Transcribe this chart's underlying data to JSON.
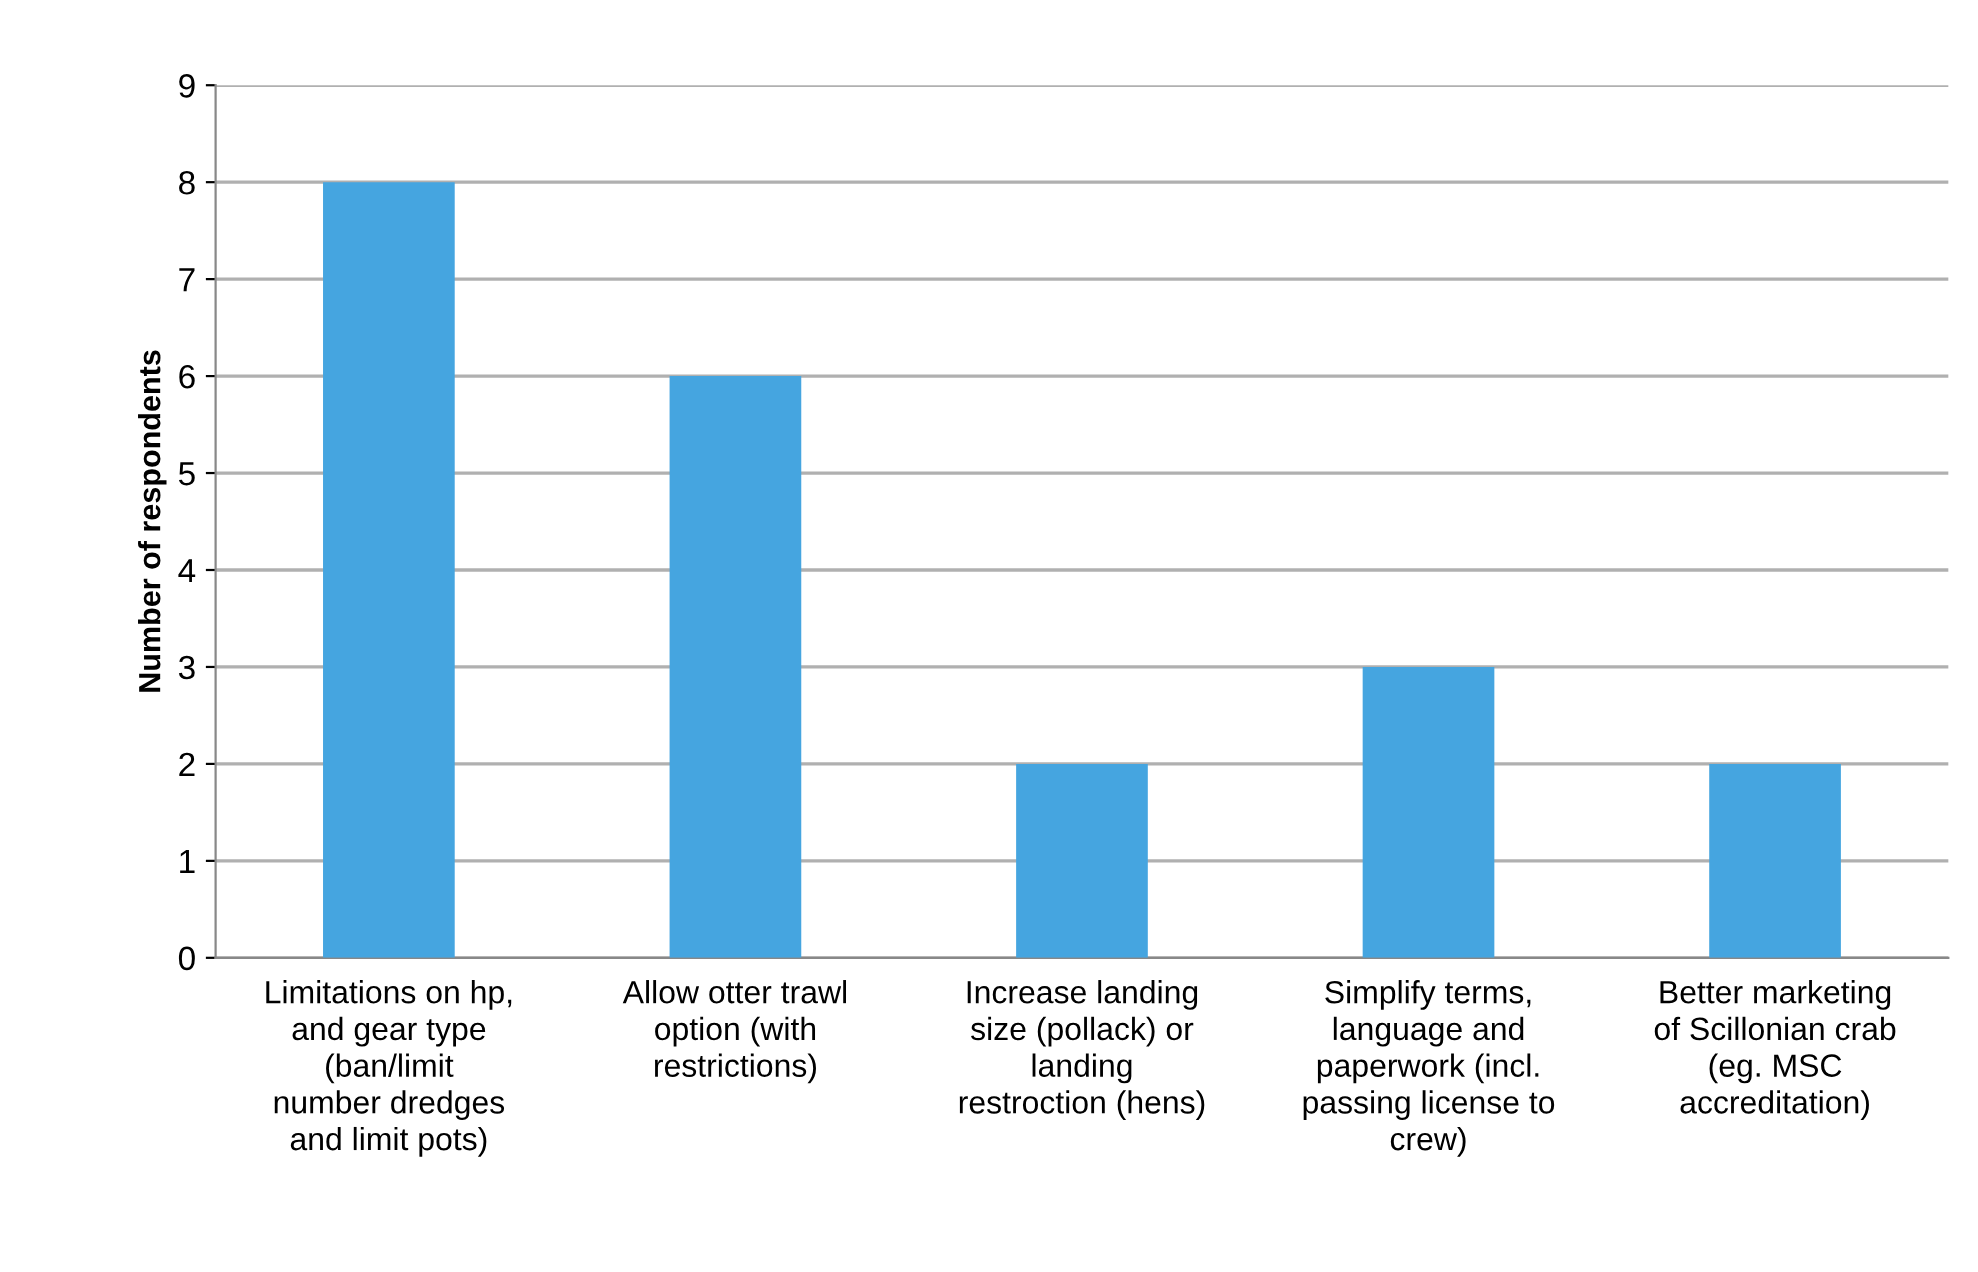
{
  "chart_data": {
    "type": "bar",
    "categories": [
      "Limitations on hp,\nand gear type\n(ban/limit\nnumber dredges\nand limit pots)",
      "Allow otter trawl\noption (with\nrestrictions)",
      "Increase landing\nsize (pollack) or\nlanding\nrestroction (hens)",
      "Simplify terms,\nlanguage and\npaperwork (incl.\npassing license to\ncrew)",
      "Better marketing\nof Scillonian crab\n(eg. MSC\naccreditation)"
    ],
    "values": [
      8,
      6,
      2,
      3,
      2
    ],
    "color": "#45a5e0",
    "ylabel": "Number of respondents",
    "ylim": [
      0,
      9
    ],
    "yticks": [
      0,
      1,
      2,
      3,
      4,
      5,
      6,
      7,
      8,
      9
    ],
    "grid": "y",
    "legend": false
  }
}
